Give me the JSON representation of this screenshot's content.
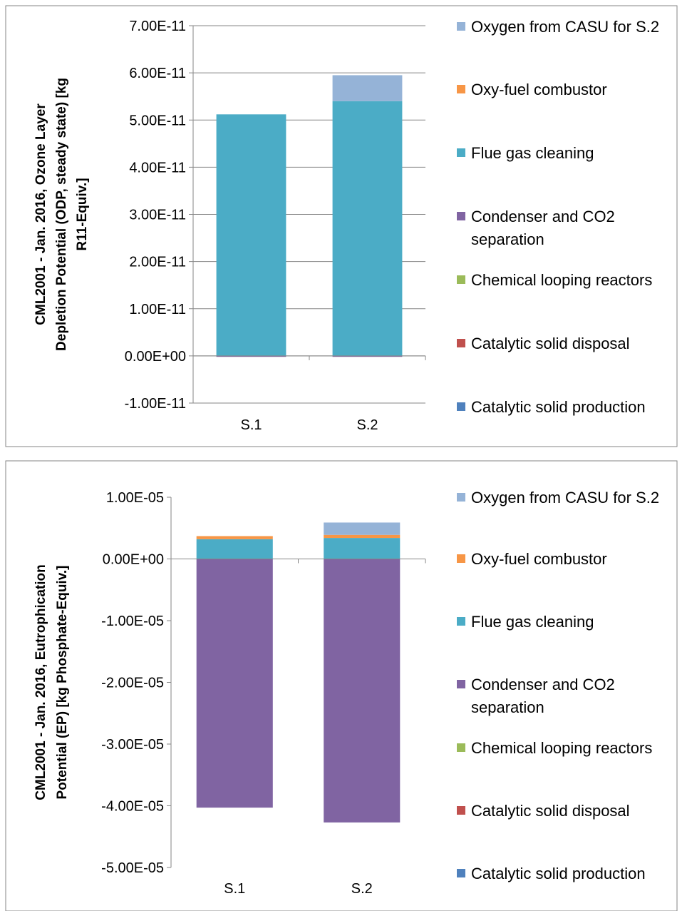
{
  "chart_data": [
    {
      "type": "bar",
      "stacked": true,
      "categories": [
        "S.1",
        "S.2"
      ],
      "ylabel_lines": [
        "CML2001 - Jan. 2016, Ozone Layer",
        "Depletion Potential (ODP, steady state) [kg",
        "R11-Equiv.]"
      ],
      "ylim": [
        -1e-11,
        7e-11
      ],
      "yticks": [
        -1e-11,
        0,
        1e-11,
        2e-11,
        3e-11,
        4e-11,
        5e-11,
        6e-11,
        7e-11
      ],
      "ytick_labels": [
        "-1.00E-11",
        "0.00E+00",
        "1.00E-11",
        "2.00E-11",
        "3.00E-11",
        "4.00E-11",
        "5.00E-11",
        "6.00E-11",
        "7.00E-11"
      ],
      "grid": true,
      "legend_position": "right",
      "series": [
        {
          "name": "Catalytic solid production",
          "color": "#4f81bd",
          "values": [
            0,
            0
          ]
        },
        {
          "name": "Catalytic solid disposal",
          "color": "#c0504d",
          "values": [
            0,
            0
          ]
        },
        {
          "name": "Chemical looping reactors",
          "color": "#9bbb59",
          "values": [
            0,
            0
          ]
        },
        {
          "name": "Condenser and CO2 separation",
          "color": "#8064a2",
          "values": [
            -2e-13,
            -2e-13
          ]
        },
        {
          "name": "Flue gas cleaning",
          "color": "#4bacc6",
          "values": [
            5.12e-11,
            5.4e-11
          ]
        },
        {
          "name": "Oxy-fuel combustor",
          "color": "#f79646",
          "values": [
            0,
            0
          ]
        },
        {
          "name": "Oxygen from CASU for S.2",
          "color": "#95b3d7",
          "values": [
            0,
            5.5e-12
          ]
        }
      ]
    },
    {
      "type": "bar",
      "stacked": true,
      "categories": [
        "S.1",
        "S.2"
      ],
      "ylabel_lines": [
        "CML2001 - Jan. 2016, Eutrophication",
        "Potential (EP) [kg Phosphate-Equiv.]"
      ],
      "ylim": [
        -5e-05,
        1e-05
      ],
      "yticks": [
        -5e-05,
        -4e-05,
        -3e-05,
        -2e-05,
        -1e-05,
        0,
        1e-05
      ],
      "ytick_labels": [
        "-5.00E-05",
        "-4.00E-05",
        "-3.00E-05",
        "-2.00E-05",
        "-1.00E-05",
        "0.00E+00",
        "1.00E-05"
      ],
      "grid": false,
      "legend_position": "right",
      "series": [
        {
          "name": "Catalytic solid production",
          "color": "#4f81bd",
          "values": [
            0,
            0
          ]
        },
        {
          "name": "Catalytic solid disposal",
          "color": "#c0504d",
          "values": [
            0,
            0
          ]
        },
        {
          "name": "Chemical looping reactors",
          "color": "#9bbb59",
          "values": [
            0,
            0
          ]
        },
        {
          "name": "Condenser and CO2 separation",
          "color": "#8064a2",
          "values": [
            -4.03e-05,
            -4.27e-05
          ]
        },
        {
          "name": "Flue gas cleaning",
          "color": "#4bacc6",
          "values": [
            3.2e-06,
            3.4e-06
          ]
        },
        {
          "name": "Oxy-fuel combustor",
          "color": "#f79646",
          "values": [
            5e-07,
            5e-07
          ]
        },
        {
          "name": "Oxygen from CASU for S.2",
          "color": "#95b3d7",
          "values": [
            0,
            2e-06
          ]
        }
      ]
    }
  ]
}
